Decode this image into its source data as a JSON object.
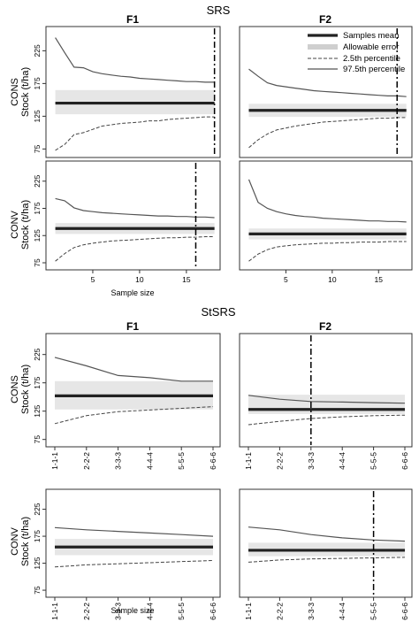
{
  "figure": {
    "legend": {
      "mean": "Samples mean",
      "error": "Allowable error",
      "p25": "2.5th percentile",
      "p975": "97.5th percentile"
    },
    "colors": {
      "band": "#e6e6e6",
      "mean": "#222222",
      "line": "#555555",
      "frame": "#333333"
    }
  },
  "sections": {
    "srs": {
      "title": "SRS",
      "col1": "F1",
      "col2": "F2",
      "row1": "CONS",
      "row2": "CONV",
      "ylabel": "Stock (t/ha)",
      "xlabel": "Sample size"
    },
    "stsrs": {
      "title": "StSRS",
      "col1": "F1",
      "col2": "F2",
      "row1": "CONS",
      "row2": "CONV",
      "ylabel": "Stock (t/ha)",
      "xlabel": "Sample size"
    }
  },
  "chart_data": [
    {
      "type": "line",
      "section": "SRS",
      "column": "F1",
      "row": "CONS",
      "x": [
        1,
        2,
        3,
        4,
        5,
        6,
        7,
        8,
        9,
        10,
        11,
        12,
        13,
        14,
        15,
        16,
        17,
        18
      ],
      "xticks": [
        5,
        10,
        15
      ],
      "xlim": [
        0,
        18.6
      ],
      "yticks": [
        75,
        125,
        175,
        225
      ],
      "ylim": [
        62,
        262
      ],
      "mean": 145,
      "band": [
        128,
        165
      ],
      "p975": [
        245,
        222,
        200,
        199,
        193,
        190,
        188,
        186,
        185,
        183,
        182,
        181,
        180,
        179,
        178,
        178,
        177,
        177
      ],
      "p25": [
        73,
        82,
        97,
        100,
        105,
        110,
        112,
        114,
        115,
        116,
        118,
        118,
        120,
        121,
        122,
        123,
        124,
        124
      ],
      "cutoff": 18
    },
    {
      "type": "line",
      "section": "SRS",
      "column": "F2",
      "row": "CONS",
      "x": [
        1,
        2,
        3,
        4,
        5,
        6,
        7,
        8,
        9,
        10,
        11,
        12,
        13,
        14,
        15,
        16,
        17,
        18
      ],
      "xticks": [
        5,
        10,
        15
      ],
      "xlim": [
        0,
        18.6
      ],
      "yticks": [
        75,
        125,
        175,
        225
      ],
      "ylim": [
        62,
        262
      ],
      "mean": 134,
      "band": [
        124,
        144
      ],
      "p975": [
        197,
        186,
        176,
        172,
        170,
        168,
        166,
        164,
        163,
        162,
        161,
        160,
        159,
        158,
        157,
        156,
        156,
        155
      ],
      "p25": [
        77,
        89,
        98,
        104,
        107,
        110,
        112,
        114,
        116,
        117,
        118,
        119,
        120,
        121,
        122,
        122,
        123,
        123
      ],
      "cutoff": 17
    },
    {
      "type": "line",
      "section": "SRS",
      "column": "F1",
      "row": "CONV",
      "x": [
        1,
        2,
        3,
        4,
        5,
        6,
        7,
        8,
        9,
        10,
        11,
        12,
        13,
        14,
        15,
        16,
        17,
        18
      ],
      "xticks": [
        5,
        10,
        15
      ],
      "xlim": [
        0,
        18.6
      ],
      "yticks": [
        75,
        125,
        175,
        225
      ],
      "ylim": [
        62,
        262
      ],
      "mean": 138,
      "band": [
        128,
        148
      ],
      "p975": [
        193,
        189,
        176,
        171,
        169,
        167,
        166,
        165,
        164,
        163,
        162,
        161,
        161,
        160,
        160,
        159,
        159,
        158
      ],
      "p25": [
        78,
        92,
        103,
        108,
        111,
        113,
        115,
        116,
        117,
        118,
        119,
        120,
        121,
        121,
        122,
        122,
        123,
        123
      ],
      "cutoff": 16
    },
    {
      "type": "line",
      "section": "SRS",
      "column": "F2",
      "row": "CONV",
      "x": [
        1,
        2,
        3,
        4,
        5,
        6,
        7,
        8,
        9,
        10,
        11,
        12,
        13,
        14,
        15,
        16,
        17,
        18
      ],
      "xticks": [
        5,
        10,
        15
      ],
      "xlim": [
        0,
        18.6
      ],
      "yticks": [
        75,
        125,
        175,
        225
      ],
      "ylim": [
        62,
        262
      ],
      "mean": 128,
      "band": [
        118,
        138
      ],
      "p975": [
        228,
        186,
        175,
        169,
        165,
        162,
        160,
        159,
        157,
        156,
        155,
        154,
        153,
        152,
        152,
        151,
        151,
        150
      ],
      "p25": [
        78,
        91,
        99,
        104,
        106,
        108,
        109,
        110,
        111,
        111,
        112,
        112,
        113,
        113,
        113,
        114,
        114,
        114
      ],
      "cutoff": null
    },
    {
      "type": "line",
      "section": "StSRS",
      "column": "F1",
      "row": "CONS",
      "x": [
        "1-1-1",
        "2-2-2",
        "3-3-3",
        "4-4-4",
        "5-5-5",
        "6-6-6"
      ],
      "ylim": [
        62,
        262
      ],
      "yticks": [
        75,
        125,
        175,
        225
      ],
      "mean": 152,
      "band": [
        128,
        178
      ],
      "p975": [
        220,
        205,
        188,
        184,
        178,
        178
      ],
      "p25": [
        103,
        117,
        124,
        127,
        130,
        133
      ],
      "cutoff": null
    },
    {
      "type": "line",
      "section": "StSRS",
      "column": "F2",
      "row": "CONS",
      "x": [
        "1-1-1",
        "2-2-2",
        "3-3-3",
        "4-4-4",
        "5-5-5",
        "6-6-6"
      ],
      "ylim": [
        62,
        262
      ],
      "yticks": [
        75,
        125,
        175,
        225
      ],
      "mean": 128,
      "band": [
        120,
        154
      ],
      "p975": [
        153,
        146,
        142,
        141,
        140,
        139
      ],
      "p25": [
        101,
        107,
        112,
        115,
        117,
        118
      ],
      "cutoff": "3-3-3"
    },
    {
      "type": "line",
      "section": "StSRS",
      "column": "F1",
      "row": "CONV",
      "x": [
        "1-1-1",
        "2-2-2",
        "3-3-3",
        "4-4-4",
        "5-5-5",
        "6-6-6"
      ],
      "ylim": [
        62,
        262
      ],
      "yticks": [
        75,
        125,
        175,
        225
      ],
      "mean": 155,
      "band": [
        140,
        170
      ],
      "p975": [
        191,
        187,
        184,
        181,
        178,
        175
      ],
      "p25": [
        118,
        122,
        124,
        126,
        128,
        130
      ],
      "cutoff": null
    },
    {
      "type": "line",
      "section": "StSRS",
      "column": "F2",
      "row": "CONV",
      "x": [
        "1-1-1",
        "2-2-2",
        "3-3-3",
        "4-4-4",
        "5-5-5",
        "6-6-6"
      ],
      "ylim": [
        62,
        262
      ],
      "yticks": [
        75,
        125,
        175,
        225
      ],
      "mean": 149,
      "band": [
        138,
        163
      ],
      "p975": [
        192,
        187,
        178,
        172,
        168,
        166
      ],
      "p25": [
        127,
        131,
        133,
        134,
        135,
        136
      ],
      "cutoff": "5-5-5"
    }
  ]
}
